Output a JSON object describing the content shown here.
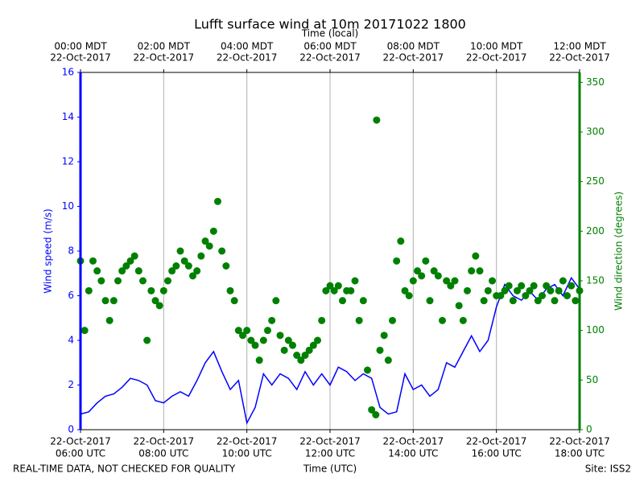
{
  "chart_data": {
    "type": "combo",
    "title": "Lufft surface wind at 10m 20171022 1800",
    "xlabel": "Time (UTC)",
    "x2label": "Time (local)",
    "ylabel": "Wind speed (m/s)",
    "y2label": "Wind direction (degrees)",
    "footer_left": "REAL-TIME DATA, NOT CHECKED FOR QUALITY",
    "footer_right": "Site: ISS2",
    "xlim": [
      6,
      18
    ],
    "xticks": [
      {
        "value": 6,
        "label": [
          "22-Oct-2017",
          "06:00 UTC"
        ]
      },
      {
        "value": 8,
        "label": [
          "22-Oct-2017",
          "08:00 UTC"
        ]
      },
      {
        "value": 10,
        "label": [
          "22-Oct-2017",
          "10:00 UTC"
        ]
      },
      {
        "value": 12,
        "label": [
          "22-Oct-2017",
          "12:00 UTC"
        ]
      },
      {
        "value": 14,
        "label": [
          "22-Oct-2017",
          "14:00 UTC"
        ]
      },
      {
        "value": 16,
        "label": [
          "22-Oct-2017",
          "16:00 UTC"
        ]
      },
      {
        "value": 18,
        "label": [
          "22-Oct-2017",
          "18:00 UTC"
        ]
      }
    ],
    "x2ticks": [
      {
        "value": 6,
        "label": [
          "00:00 MDT",
          "22-Oct-2017"
        ]
      },
      {
        "value": 8,
        "label": [
          "02:00 MDT",
          "22-Oct-2017"
        ]
      },
      {
        "value": 10,
        "label": [
          "04:00 MDT",
          "22-Oct-2017"
        ]
      },
      {
        "value": 12,
        "label": [
          "06:00 MDT",
          "22-Oct-2017"
        ]
      },
      {
        "value": 14,
        "label": [
          "08:00 MDT",
          "22-Oct-2017"
        ]
      },
      {
        "value": 16,
        "label": [
          "10:00 MDT",
          "22-Oct-2017"
        ]
      },
      {
        "value": 18,
        "label": [
          "12:00 MDT",
          "22-Oct-2017"
        ]
      }
    ],
    "ylim": [
      0,
      16
    ],
    "yticks": [
      0,
      2,
      4,
      6,
      8,
      10,
      12,
      14,
      16
    ],
    "y2lim": [
      0,
      360
    ],
    "y2ticks": [
      0,
      50,
      100,
      150,
      200,
      250,
      300,
      350
    ],
    "grid": true,
    "series": [
      {
        "name": "Wind speed",
        "type": "line",
        "color": "#0000ff",
        "x": [
          6.0,
          6.2,
          6.4,
          6.6,
          6.8,
          7.0,
          7.2,
          7.4,
          7.6,
          7.8,
          8.0,
          8.2,
          8.4,
          8.6,
          8.8,
          9.0,
          9.2,
          9.4,
          9.6,
          9.8,
          10.0,
          10.2,
          10.4,
          10.6,
          10.8,
          11.0,
          11.2,
          11.4,
          11.6,
          11.8,
          12.0,
          12.2,
          12.4,
          12.6,
          12.8,
          13.0,
          13.2,
          13.4,
          13.6,
          13.8,
          14.0,
          14.2,
          14.4,
          14.6,
          14.8,
          15.0,
          15.2,
          15.4,
          15.6,
          15.8,
          16.0,
          16.2,
          16.4,
          16.6,
          16.8,
          17.0,
          17.2,
          17.4,
          17.6,
          17.8,
          18.0
        ],
        "values": [
          0.7,
          0.8,
          1.2,
          1.5,
          1.6,
          1.9,
          2.3,
          2.2,
          2.0,
          1.3,
          1.2,
          1.5,
          1.7,
          1.5,
          2.2,
          3.0,
          3.5,
          2.6,
          1.8,
          2.2,
          0.3,
          1.0,
          2.5,
          2.0,
          2.5,
          2.3,
          1.8,
          2.6,
          2.0,
          2.5,
          2.0,
          2.8,
          2.6,
          2.2,
          2.5,
          2.3,
          1.0,
          0.7,
          0.8,
          2.5,
          1.8,
          2.0,
          1.5,
          1.8,
          3.0,
          2.8,
          3.5,
          4.2,
          3.5,
          4.0,
          5.5,
          6.5,
          6.0,
          5.8,
          6.2,
          5.8,
          6.3,
          6.5,
          6.0,
          6.8,
          6.3
        ]
      },
      {
        "name": "Wind direction",
        "type": "scatter",
        "color": "#008000",
        "axis": "y2",
        "x": [
          6.0,
          6.1,
          6.2,
          6.3,
          6.4,
          6.5,
          6.6,
          6.7,
          6.8,
          6.9,
          7.0,
          7.1,
          7.2,
          7.3,
          7.4,
          7.5,
          7.6,
          7.7,
          7.8,
          7.9,
          8.0,
          8.1,
          8.2,
          8.3,
          8.4,
          8.5,
          8.6,
          8.7,
          8.8,
          8.9,
          9.0,
          9.1,
          9.2,
          9.3,
          9.4,
          9.5,
          9.6,
          9.7,
          9.8,
          9.9,
          10.0,
          10.1,
          10.2,
          10.3,
          10.4,
          10.5,
          10.6,
          10.7,
          10.8,
          10.9,
          11.0,
          11.1,
          11.2,
          11.3,
          11.4,
          11.5,
          11.6,
          11.7,
          11.8,
          11.9,
          12.0,
          12.1,
          12.2,
          12.3,
          12.4,
          12.5,
          12.6,
          12.7,
          12.8,
          12.9,
          13.0,
          13.1,
          13.2,
          13.3,
          13.4,
          13.5,
          13.6,
          13.7,
          13.8,
          13.9,
          14.0,
          14.1,
          14.2,
          14.3,
          14.4,
          14.5,
          14.6,
          14.7,
          14.8,
          14.9,
          15.0,
          15.1,
          15.2,
          15.3,
          15.4,
          15.5,
          15.6,
          15.7,
          15.8,
          15.9,
          16.0,
          16.1,
          16.2,
          16.3,
          16.4,
          16.5,
          16.6,
          16.7,
          16.8,
          16.9,
          17.0,
          17.1,
          17.2,
          17.3,
          17.4,
          17.5,
          17.6,
          17.7,
          17.8,
          17.9,
          18.0,
          13.12
        ],
        "values": [
          170,
          100,
          140,
          170,
          160,
          150,
          130,
          110,
          130,
          150,
          160,
          165,
          170,
          175,
          160,
          150,
          90,
          140,
          130,
          125,
          140,
          150,
          160,
          165,
          180,
          170,
          165,
          155,
          160,
          175,
          190,
          185,
          200,
          230,
          180,
          165,
          140,
          130,
          100,
          95,
          100,
          90,
          85,
          70,
          90,
          100,
          110,
          130,
          95,
          80,
          90,
          85,
          75,
          70,
          75,
          80,
          85,
          90,
          110,
          140,
          145,
          140,
          145,
          130,
          140,
          140,
          150,
          110,
          130,
          60,
          20,
          15,
          80,
          95,
          70,
          110,
          170,
          190,
          140,
          135,
          150,
          160,
          155,
          170,
          130,
          160,
          155,
          110,
          150,
          145,
          150,
          125,
          110,
          140,
          160,
          175,
          160,
          130,
          140,
          150,
          135,
          135,
          140,
          145,
          130,
          140,
          145,
          135,
          140,
          145,
          130,
          135,
          145,
          140,
          130,
          140,
          150,
          135,
          145,
          130,
          140,
          312
        ]
      }
    ]
  }
}
